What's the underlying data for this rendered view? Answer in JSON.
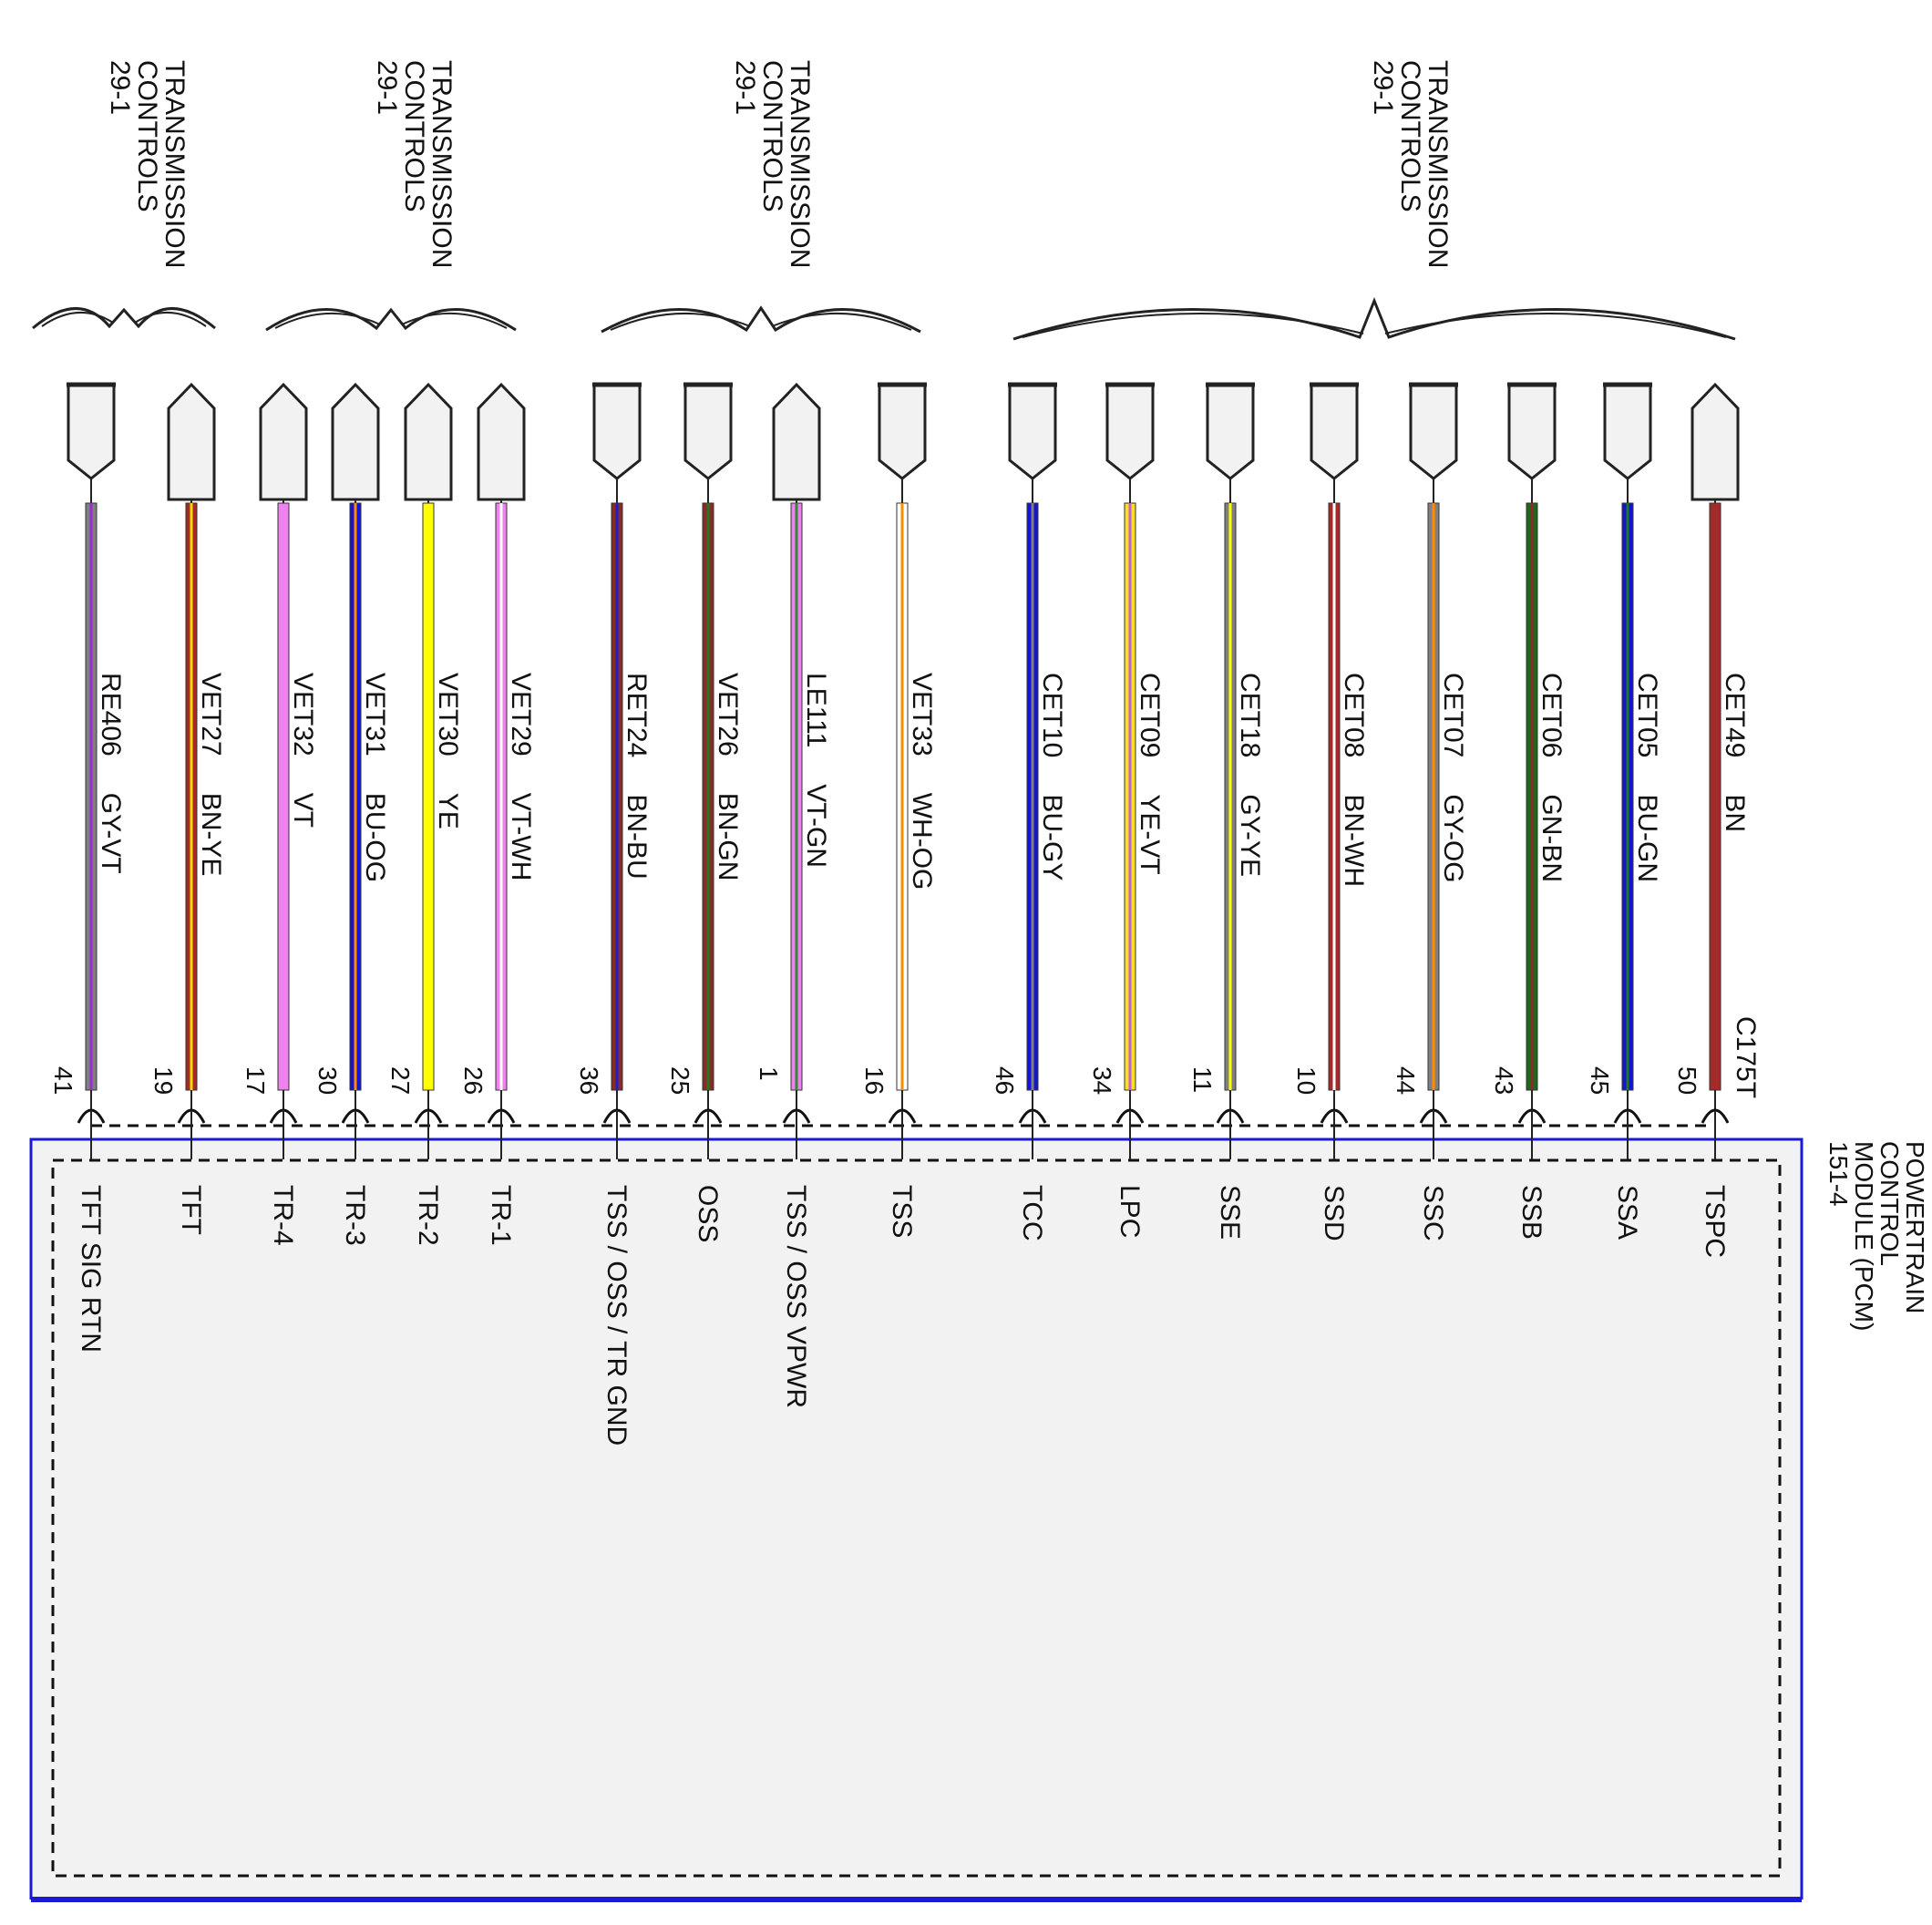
{
  "connector_groups": [
    {
      "label_lines": [
        "TRANSMISSION",
        "CONTROLS",
        "29-1"
      ]
    },
    {
      "label_lines": [
        "TRANSMISSION",
        "CONTROLS",
        "29-1"
      ]
    },
    {
      "label_lines": [
        "TRANSMISSION",
        "CONTROLS",
        "29-1"
      ]
    },
    {
      "label_lines": [
        "TRANSMISSION",
        "CONTROLS",
        "29-1"
      ]
    }
  ],
  "module": {
    "label_lines": [
      "POWERTRAIN",
      "CONTROL",
      "MODULE (PCM)",
      "151-4"
    ],
    "connector": "C175T",
    "border_color": "#1a1ad6",
    "fill_color": "#f2f2f2"
  },
  "wires": [
    {
      "circuit": "RE406",
      "color_code": "GY-VT",
      "pin": "41",
      "function": "TFT SIG RTN",
      "base": "#808080",
      "stripe": "#9b2dd4",
      "terminal": "female"
    },
    {
      "circuit": "VET27",
      "color_code": "BN-YE",
      "pin": "19",
      "function": "TFT",
      "base": "#a52a2a",
      "stripe": "#ffd700",
      "terminal": "male"
    },
    {
      "circuit": "VET32",
      "color_code": "VT",
      "pin": "17",
      "function": "TR-4",
      "base": "#ee82ee",
      "stripe": "",
      "terminal": "male"
    },
    {
      "circuit": "VET31",
      "color_code": "BU-OG",
      "pin": "30",
      "function": "TR-3",
      "base": "#1414d2",
      "stripe": "#ff8c00",
      "terminal": "male"
    },
    {
      "circuit": "VET30",
      "color_code": "YE",
      "pin": "27",
      "function": "TR-2",
      "base": "#ffff00",
      "stripe": "",
      "terminal": "male"
    },
    {
      "circuit": "VET29",
      "color_code": "VT-WH",
      "pin": "26",
      "function": "TR-1",
      "base": "#ee82ee",
      "stripe": "#ffffff",
      "terminal": "male"
    },
    {
      "circuit": "RET24",
      "color_code": "BN-BU",
      "pin": "36",
      "function": "TSS / OSS / TR GND",
      "base": "#8b2a2a",
      "stripe": "#2020c0",
      "terminal": "female"
    },
    {
      "circuit": "VET26",
      "color_code": "BN-GN",
      "pin": "25",
      "function": "OSS",
      "base": "#8b2a2a",
      "stripe": "#1f7a1f",
      "terminal": "female"
    },
    {
      "circuit": "LE111",
      "color_code": "VT-GN",
      "pin": "1",
      "function": "TSS / OSS VPWR",
      "base": "#ee82ee",
      "stripe": "#2e8b2e",
      "terminal": "male"
    },
    {
      "circuit": "VET33",
      "color_code": "WH-OG",
      "pin": "16",
      "function": "TSS",
      "base": "#ffffff",
      "stripe": "#ff8c00",
      "terminal": "female"
    },
    {
      "circuit": "CET10",
      "color_code": "BU-GY",
      "pin": "46",
      "function": "TCC",
      "base": "#1414d2",
      "stripe": "#808080",
      "terminal": "female"
    },
    {
      "circuit": "CET09",
      "color_code": "YE-VT",
      "pin": "34",
      "function": "LPC",
      "base": "#ffe020",
      "stripe": "#c060e0",
      "terminal": "female"
    },
    {
      "circuit": "CET18",
      "color_code": "GY-YE",
      "pin": "11",
      "function": "SSE",
      "base": "#808080",
      "stripe": "#ffff00",
      "terminal": "female"
    },
    {
      "circuit": "CET08",
      "color_code": "BN-WH",
      "pin": "10",
      "function": "SSD",
      "base": "#a52a2a",
      "stripe": "#ffffff",
      "terminal": "female"
    },
    {
      "circuit": "CET07",
      "color_code": "GY-OG",
      "pin": "44",
      "function": "SSC",
      "base": "#808080",
      "stripe": "#ff8c00",
      "terminal": "female"
    },
    {
      "circuit": "CET06",
      "color_code": "GN-BN",
      "pin": "43",
      "function": "SSB",
      "base": "#1a6a1a",
      "stripe": "#8b2a2a",
      "terminal": "female"
    },
    {
      "circuit": "CET05",
      "color_code": "BU-GN",
      "pin": "45",
      "function": "SSA",
      "base": "#1414d2",
      "stripe": "#1f7a1f",
      "terminal": "female"
    },
    {
      "circuit": "CET49",
      "color_code": "BN",
      "pin": "50",
      "function": "TSPC",
      "base": "#a52a2a",
      "stripe": "",
      "terminal": "male"
    }
  ]
}
